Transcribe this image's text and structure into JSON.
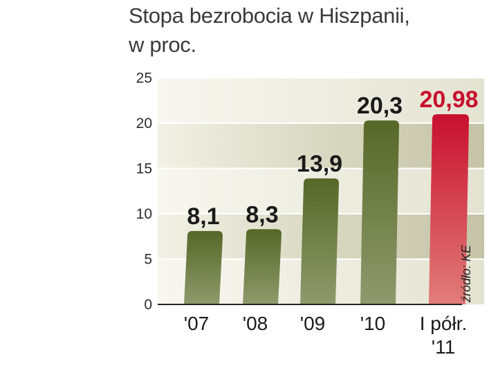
{
  "chart_data": {
    "type": "bar",
    "title_lines": [
      "Stopa bezrobocia w Hiszpanii,",
      "w proc."
    ],
    "categories": [
      {
        "lines": [
          "'07"
        ]
      },
      {
        "lines": [
          "'08"
        ]
      },
      {
        "lines": [
          "'09"
        ]
      },
      {
        "lines": [
          "'10"
        ]
      },
      {
        "lines": [
          "I półr.",
          "'11"
        ]
      }
    ],
    "values": [
      8.1,
      8.3,
      13.9,
      20.3,
      20.98
    ],
    "value_labels": [
      "8,1",
      "8,3",
      "13,9",
      "20,3",
      "20,98"
    ],
    "highlight_index": 4,
    "ylim": [
      0,
      25
    ],
    "yticks": [
      "0",
      "5",
      "10",
      "15",
      "20",
      "25"
    ],
    "source": "źródło: KE",
    "colors": {
      "bar": "#5a6b2c",
      "bar_light": "#8e9a6a",
      "highlight": "#c8102e",
      "highlight_light": "#e07a7a",
      "label": "#1a1a1a",
      "highlight_label": "#c8102e",
      "band": "#d9d8c2"
    }
  }
}
